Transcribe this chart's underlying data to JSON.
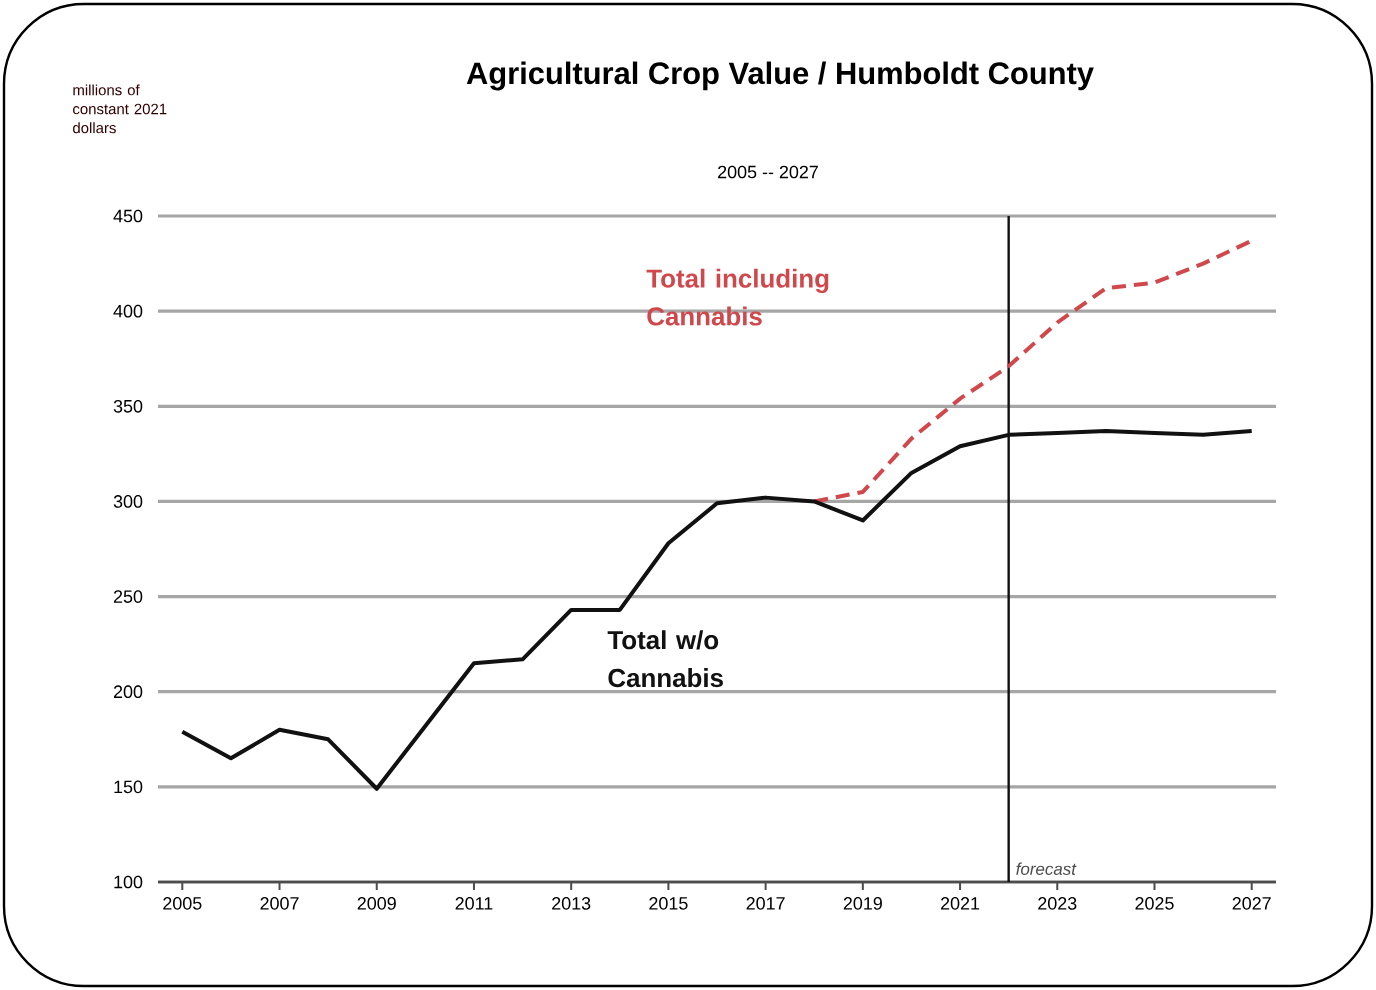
{
  "chart_data": {
    "type": "line",
    "title": "Agricultural Crop Value / Humboldt County",
    "subtitle": "2005 -- 2027",
    "annotations": [
      "millions of constant 2021 dollars"
    ],
    "xlim": [
      2004.5,
      2027.5
    ],
    "xticks": [
      2005,
      2007,
      2009,
      2011,
      2013,
      2015,
      2017,
      2019,
      2021,
      2023,
      2025,
      2027
    ],
    "ylim": [
      100,
      450
    ],
    "yticks": [
      100,
      150,
      200,
      250,
      300,
      350,
      400,
      450
    ],
    "grid": "y",
    "series": [
      {
        "name": "Total including Cannabis",
        "color": "#d0484c",
        "line_style": "dashed",
        "x": [
          2018,
          2019,
          2020,
          2021,
          2022,
          2023,
          2024,
          2025,
          2026,
          2027
        ],
        "values": [
          300,
          305,
          333,
          354,
          371,
          394,
          412,
          415,
          425,
          437
        ]
      },
      {
        "name": "Total w/o Cannabis",
        "color": "#111111",
        "line_style": "solid",
        "x": [
          2005,
          2006,
          2007,
          2008,
          2009,
          2010,
          2011,
          2012,
          2013,
          2014,
          2015,
          2016,
          2017,
          2018,
          2019,
          2020,
          2021,
          2022,
          2023,
          2024,
          2025,
          2026,
          2027
        ],
        "values": [
          179,
          165,
          180,
          175,
          149,
          182,
          215,
          217,
          243,
          243,
          278,
          299,
          302,
          300,
          290,
          315,
          329,
          335,
          336,
          337,
          336,
          335,
          337
        ]
      }
    ],
    "ref_lines": [
      {
        "axis": "x",
        "value": 2022,
        "label": "forecast",
        "color": "#111111"
      }
    ]
  }
}
